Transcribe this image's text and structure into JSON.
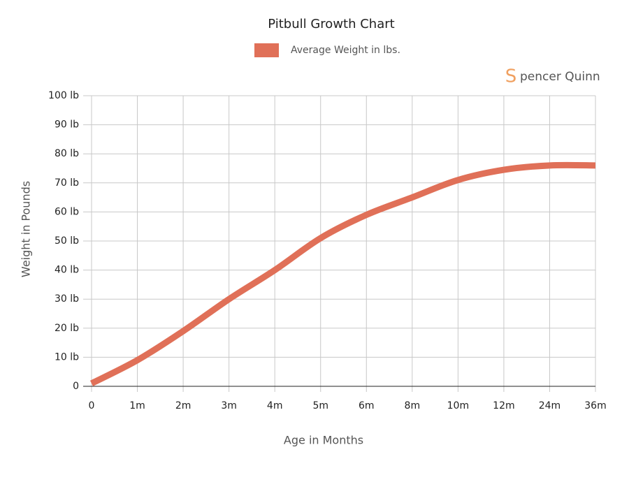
{
  "chart_data": {
    "type": "line",
    "title": "Pitbull Growth Chart",
    "brand_initial": "S",
    "brand_rest": "pencer Quinn",
    "xlabel": "Age in Months",
    "ylabel": "Weight in Pounds",
    "categories": [
      "0",
      "1m",
      "2m",
      "3m",
      "4m",
      "5m",
      "6m",
      "8m",
      "10m",
      "12m",
      "24m",
      "36m"
    ],
    "series": [
      {
        "name": "Average Weight in lbs.",
        "color": "#e07058",
        "values": [
          1,
          9,
          19,
          30,
          40,
          51,
          59,
          65,
          71,
          74.5,
          76,
          76
        ]
      }
    ],
    "ylim": [
      0,
      100
    ],
    "yticks": [
      0,
      {
        "value": 10,
        "label": "10 lb"
      },
      {
        "value": 20,
        "label": "20 lb"
      },
      {
        "value": 30,
        "label": "30 lb"
      },
      {
        "value": 40,
        "label": "40 lb"
      },
      {
        "value": 50,
        "label": "50 lb"
      },
      {
        "value": 60,
        "label": "60 lb"
      },
      {
        "value": 70,
        "label": "70 lb"
      },
      {
        "value": 80,
        "label": "80 lb"
      },
      {
        "value": 90,
        "label": "90 lb"
      },
      {
        "value": 100,
        "label": "100 lb"
      }
    ],
    "grid": true
  }
}
